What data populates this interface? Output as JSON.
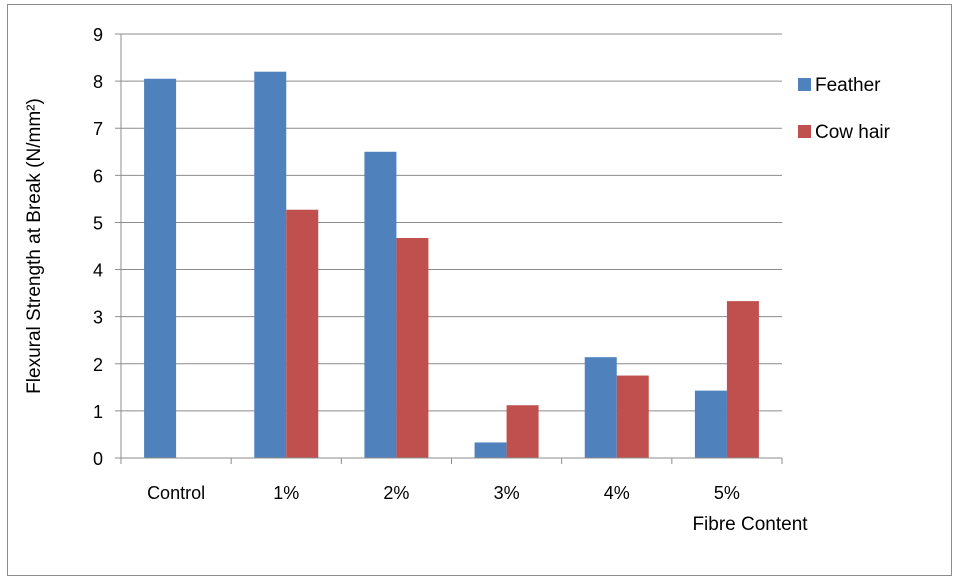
{
  "chart_data": {
    "type": "bar",
    "title": "",
    "xlabel": "Fibre Content",
    "ylabel": "Flexural Strength at Break (N/mm²)",
    "ylim": [
      0,
      9
    ],
    "yticks": [
      0,
      1,
      2,
      3,
      4,
      5,
      6,
      7,
      8,
      9
    ],
    "categories": [
      "Control",
      "1%",
      "2%",
      "3%",
      "4%",
      "5%"
    ],
    "series": [
      {
        "name": "Feather",
        "color": "#4f81bd",
        "values": [
          8.05,
          8.2,
          6.5,
          0.33,
          2.14,
          1.43
        ]
      },
      {
        "name": "Cow hair",
        "color": "#c0504d",
        "values": [
          null,
          5.27,
          4.67,
          1.12,
          1.75,
          3.33
        ]
      }
    ],
    "grid": true,
    "legend_position": "right"
  }
}
